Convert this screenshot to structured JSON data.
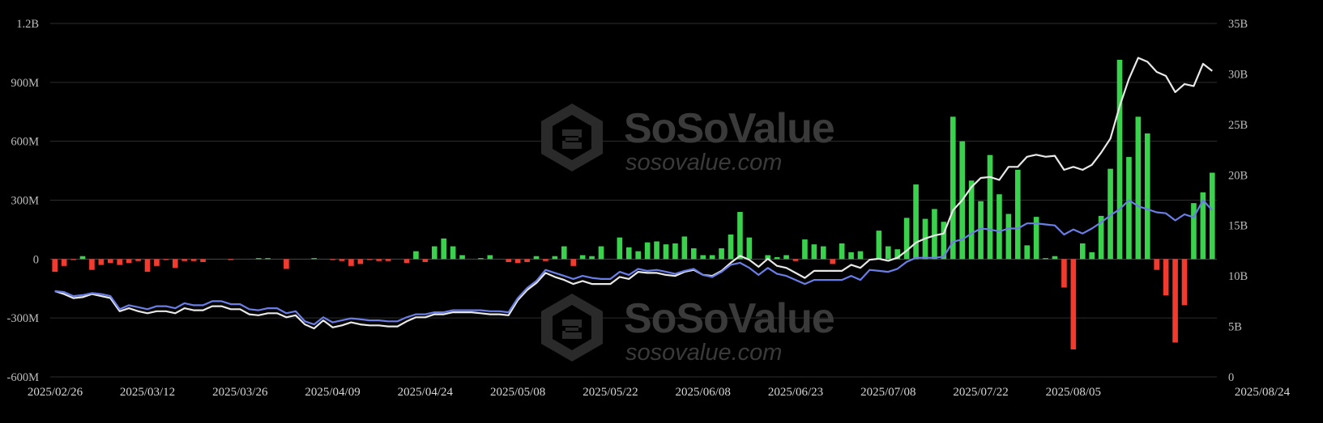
{
  "watermark": {
    "brand": "SoSoValue",
    "url": "sosovalue.com"
  },
  "colors": {
    "background": "#000000",
    "inflow": "#3ad14c",
    "outflow": "#f23a2f",
    "total_net_assets": "#e8e8e8",
    "cumulative_inflow": "#6b7ee6"
  },
  "chart_data": {
    "type": "bar",
    "legend": "none",
    "grid": true,
    "left_axis": {
      "ticks": [
        "1.2B",
        "900M",
        "600M",
        "300M",
        "0",
        "-300M",
        "-600M"
      ],
      "tick_values": [
        1200,
        900,
        600,
        300,
        0,
        -300,
        -600
      ],
      "range": [
        -600,
        1200
      ],
      "unit": "M USD"
    },
    "right_axis": {
      "ticks": [
        "35B",
        "30B",
        "25B",
        "20B",
        "15B",
        "10B",
        "5B",
        "0"
      ],
      "tick_values": [
        35,
        30,
        25,
        20,
        15,
        10,
        5,
        0
      ],
      "range": [
        0,
        35
      ],
      "unit": "B USD"
    },
    "x_axis": {
      "ticks": [
        "2025/02/26",
        "2025/03/12",
        "2025/03/26",
        "2025/04/09",
        "2025/04/24",
        "2025/05/08",
        "2025/05/22",
        "2025/06/08",
        "2025/06/23",
        "2025/07/08",
        "2025/07/22",
        "2025/08/05",
        "2025/08/24"
      ],
      "tick_positions": [
        0,
        10,
        20,
        30,
        40,
        50,
        60,
        70,
        80,
        90,
        100,
        110,
        122
      ]
    },
    "bars": {
      "name": "",
      "unit": "M USD",
      "values": [
        -65,
        -35,
        -5,
        15,
        -55,
        -30,
        -20,
        -30,
        -20,
        -10,
        -65,
        -35,
        -5,
        -45,
        -10,
        -10,
        -15,
        0,
        0,
        -5,
        0,
        0,
        5,
        5,
        0,
        -50,
        0,
        0,
        5,
        0,
        -5,
        -10,
        -35,
        -25,
        -5,
        -10,
        -10,
        0,
        -20,
        40,
        -15,
        65,
        105,
        65,
        20,
        0,
        5,
        20,
        0,
        -15,
        -20,
        -15,
        15,
        -10,
        15,
        65,
        -35,
        20,
        15,
        65,
        0,
        110,
        60,
        40,
        85,
        90,
        75,
        80,
        115,
        55,
        20,
        20,
        55,
        125,
        240,
        110,
        0,
        20,
        10,
        20,
        -10,
        100,
        75,
        65,
        -25,
        80,
        35,
        40,
        0,
        145,
        65,
        50,
        210,
        380,
        205,
        255,
        190,
        725,
        600,
        400,
        295,
        530,
        330,
        230,
        455,
        70,
        215,
        5,
        15,
        -145,
        -460,
        80,
        35,
        220,
        460,
        1015,
        520,
        725,
        640,
        -55,
        -185,
        -425,
        -235,
        285,
        340,
        440
      ],
      "_note_values_are_in_millions": true
    },
    "series": [
      {
        "name": "",
        "axis": "right",
        "unit": "B USD",
        "values": [
          8.5,
          8.2,
          7.8,
          7.9,
          8.2,
          8.0,
          7.8,
          6.5,
          6.8,
          6.5,
          6.3,
          6.5,
          6.5,
          6.3,
          6.8,
          6.6,
          6.6,
          7.0,
          7.0,
          6.7,
          6.7,
          6.2,
          6.1,
          6.3,
          6.3,
          5.9,
          6.1,
          5.2,
          4.8,
          5.6,
          4.9,
          5.1,
          5.4,
          5.2,
          5.1,
          5.1,
          5.0,
          5.0,
          5.5,
          5.9,
          5.9,
          6.2,
          6.2,
          6.4,
          6.4,
          6.4,
          6.3,
          6.2,
          6.2,
          6.1,
          7.6,
          8.6,
          9.3,
          10.3,
          9.9,
          9.6,
          9.2,
          9.5,
          9.2,
          9.2,
          9.2,
          9.9,
          9.7,
          10.4,
          10.3,
          10.3,
          10.1,
          10.0,
          10.4,
          10.6,
          10.1,
          10.0,
          10.5,
          11.3,
          12.0,
          11.6,
          10.9,
          11.7,
          11.0,
          10.8,
          10.3,
          9.8,
          10.5,
          10.5,
          10.5,
          10.5,
          11.1,
          10.8,
          11.6,
          11.7,
          11.5,
          11.8,
          12.5,
          13.3,
          13.7,
          14.0,
          14.2,
          16.5,
          17.5,
          18.8,
          19.7,
          19.8,
          19.5,
          20.8,
          20.8,
          21.8,
          22.0,
          21.8,
          21.9,
          20.5,
          20.8,
          20.5,
          21.0,
          22.2,
          23.6,
          26.8,
          29.5,
          31.6,
          31.2,
          30.2,
          29.8,
          28.2,
          29.0,
          28.8,
          31.0,
          30.3
        ],
        "color": "#e8e8e8"
      },
      {
        "name": "",
        "axis": "right",
        "unit": "B USD",
        "values": [
          8.5,
          8.4,
          8.0,
          8.1,
          8.3,
          8.2,
          8.0,
          6.7,
          7.1,
          6.9,
          6.7,
          7.0,
          7.0,
          6.8,
          7.3,
          7.1,
          7.1,
          7.5,
          7.5,
          7.2,
          7.2,
          6.7,
          6.6,
          6.8,
          6.8,
          6.3,
          6.5,
          5.5,
          5.2,
          5.9,
          5.4,
          5.6,
          5.8,
          5.7,
          5.6,
          5.6,
          5.5,
          5.5,
          5.9,
          6.2,
          6.2,
          6.4,
          6.4,
          6.6,
          6.6,
          6.6,
          6.6,
          6.5,
          6.5,
          6.4,
          7.8,
          8.8,
          9.5,
          10.6,
          10.3,
          10.0,
          9.7,
          10.0,
          9.8,
          9.7,
          9.7,
          10.4,
          10.1,
          10.7,
          10.5,
          10.6,
          10.4,
          10.2,
          10.5,
          10.7,
          10.1,
          9.9,
          10.4,
          11.1,
          11.3,
          10.8,
          10.1,
          10.8,
          10.2,
          10.0,
          9.6,
          9.2,
          9.6,
          9.6,
          9.6,
          9.6,
          10.0,
          9.6,
          10.6,
          10.5,
          10.4,
          10.7,
          11.4,
          11.8,
          11.8,
          11.8,
          11.9,
          13.4,
          13.6,
          14.2,
          14.7,
          14.6,
          14.4,
          14.7,
          14.7,
          15.2,
          15.2,
          15.1,
          15.0,
          14.1,
          14.6,
          14.2,
          14.7,
          15.3,
          16.0,
          16.6,
          17.5,
          16.9,
          16.6,
          16.3,
          16.2,
          15.5,
          16.1,
          15.8,
          17.5,
          16.5
        ],
        "color": "#6b7ee6"
      }
    ]
  }
}
